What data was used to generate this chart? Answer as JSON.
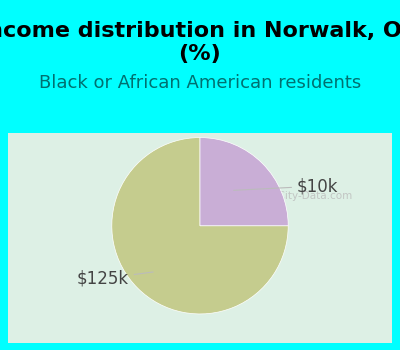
{
  "title": "Income distribution in Norwalk, OH\n(%)",
  "subtitle": "Black or African American residents",
  "slices": [
    75.0,
    25.0
  ],
  "labels": [
    "$125k",
    "$10k"
  ],
  "colors": [
    "#c5cc8e",
    "#c9aed6"
  ],
  "background_color": "#00ffff",
  "title_fontsize": 16,
  "subtitle_fontsize": 13,
  "label_fontsize": 12,
  "startangle": 90
}
